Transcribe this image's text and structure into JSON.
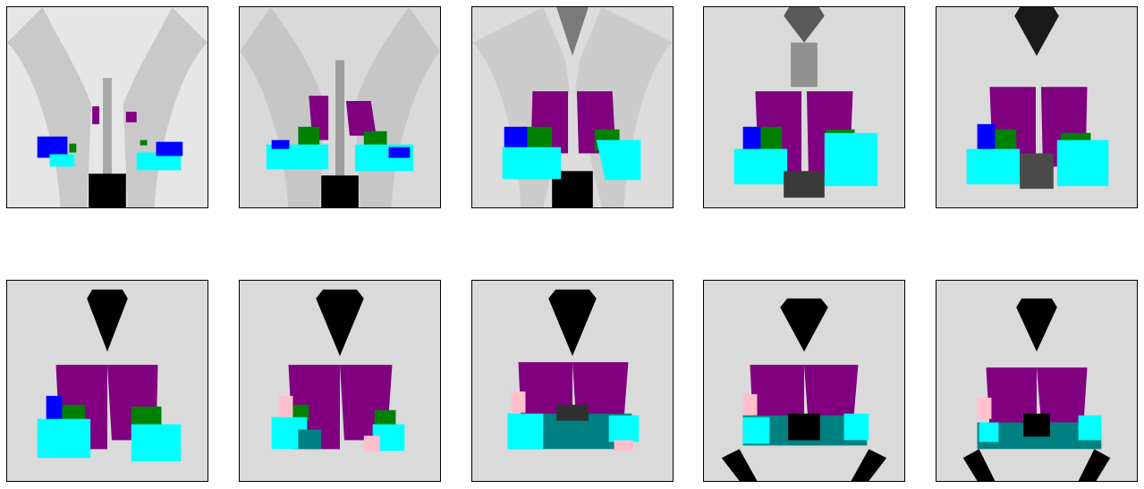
{
  "figure": {
    "rows": 2,
    "cols": 5,
    "panel_count": 10
  },
  "label_colors": {
    "label_purple": "#800080",
    "label_cyan": "#00ffff",
    "label_blue": "#0000ff",
    "label_green": "#008000",
    "label_teal": "#008080",
    "label_pink": "#ffc0cb"
  },
  "panels": [
    {
      "id": "slice-1",
      "labels": [
        "purple",
        "cyan",
        "blue",
        "green"
      ]
    },
    {
      "id": "slice-2",
      "labels": [
        "purple",
        "cyan",
        "blue",
        "green"
      ]
    },
    {
      "id": "slice-3",
      "labels": [
        "purple",
        "cyan",
        "blue",
        "green"
      ]
    },
    {
      "id": "slice-4",
      "labels": [
        "purple",
        "cyan",
        "blue",
        "green"
      ]
    },
    {
      "id": "slice-5",
      "labels": [
        "purple",
        "cyan",
        "blue",
        "green"
      ]
    },
    {
      "id": "slice-6",
      "labels": [
        "purple",
        "cyan",
        "blue",
        "green"
      ]
    },
    {
      "id": "slice-7",
      "labels": [
        "purple",
        "cyan",
        "green",
        "teal",
        "pink"
      ]
    },
    {
      "id": "slice-8",
      "labels": [
        "purple",
        "cyan",
        "teal",
        "pink"
      ]
    },
    {
      "id": "slice-9",
      "labels": [
        "purple",
        "cyan",
        "teal",
        "pink"
      ]
    },
    {
      "id": "slice-10",
      "labels": [
        "purple",
        "cyan",
        "teal",
        "pink"
      ]
    }
  ]
}
